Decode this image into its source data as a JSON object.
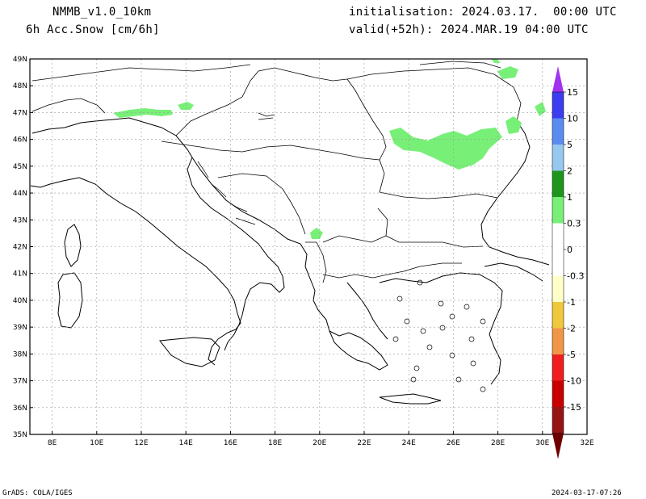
{
  "header": {
    "model": "NMMB_v1.0_10km",
    "variable": "6h Acc.Snow [cm/6h]",
    "init": "initialisation: 2024.03.17.  00:00 UTC",
    "valid": "valid(+52h): 2024.MAR.19 04:00 UTC"
  },
  "map": {
    "lat_labels": [
      "49N",
      "48N",
      "47N",
      "46N",
      "45N",
      "44N",
      "43N",
      "42N",
      "41N",
      "40N",
      "39N",
      "38N",
      "37N",
      "36N",
      "35N"
    ],
    "lon_labels": [
      "8E",
      "10E",
      "12E",
      "14E",
      "16E",
      "18E",
      "20E",
      "22E",
      "24E",
      "26E",
      "28E",
      "30E",
      "32E"
    ],
    "lat_range": [
      35,
      49
    ],
    "lon_range": [
      7,
      32
    ],
    "snow_patches_color": "#78f078"
  },
  "colorbar": {
    "levels": [
      {
        "label": "15",
        "color": "#3c3cf0"
      },
      {
        "label": "10",
        "color": "#5a8cf0"
      },
      {
        "label": "5",
        "color": "#96c8f0"
      },
      {
        "label": "2",
        "color": "#1e961e"
      },
      {
        "label": "1",
        "color": "#78f078"
      },
      {
        "label": "0.3",
        "color": "#ffffff"
      },
      {
        "label": "0",
        "color": "#ffffff"
      },
      {
        "label": "-0.3",
        "color": "#ffffc8"
      },
      {
        "label": "-1",
        "color": "#f0c83c"
      },
      {
        "label": "-2",
        "color": "#f09646"
      },
      {
        "label": "-5",
        "color": "#f01e1e"
      },
      {
        "label": "-10",
        "color": "#c80000"
      },
      {
        "label": "-15",
        "color": "#961414"
      }
    ],
    "top_arrow_color": "#a032f0",
    "bottom_arrow_color": "#6e0000"
  },
  "footer": {
    "left": "GrADS: COLA/IGES",
    "right": "2024-03-17-07:26"
  }
}
